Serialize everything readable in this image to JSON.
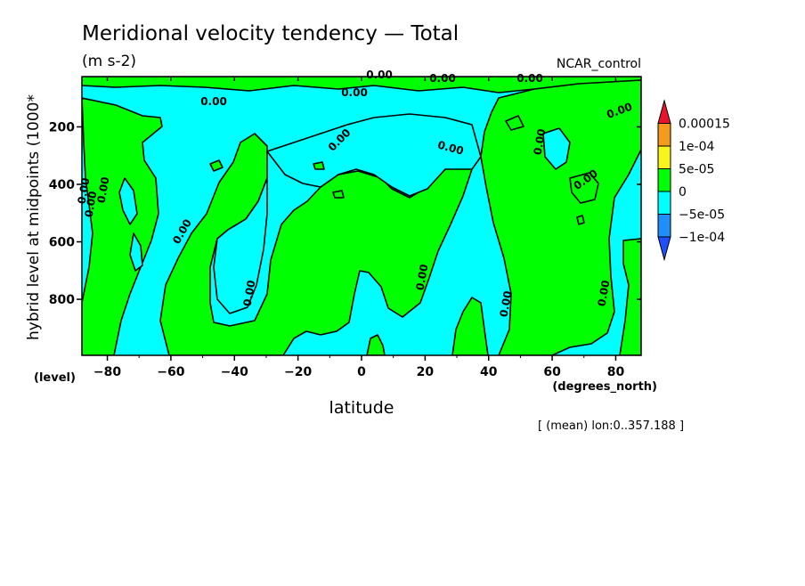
{
  "chart_data": {
    "type": "heatmap",
    "title": "Meridional velocity tendency — Total",
    "subtitle": "(m s-2)",
    "run_label": "NCAR_control",
    "xlabel": "latitude",
    "xunits": "(degrees_north)",
    "ylabel": "hybrid level at midpoints (1000*",
    "yunits": "(level)",
    "averaging_note": "[ (mean) lon:0..357.188 ]",
    "x_ticks": [
      "−80",
      "−60",
      "−40",
      "−20",
      "0",
      "20",
      "40",
      "60",
      "80"
    ],
    "x_tick_values": [
      -80,
      -60,
      -40,
      -20,
      0,
      20,
      40,
      60,
      80
    ],
    "y_ticks": [
      "200",
      "400",
      "600",
      "800"
    ],
    "y_tick_values": [
      200,
      400,
      600,
      800
    ],
    "xlim": [
      -88,
      88
    ],
    "ylim": [
      995,
      25
    ],
    "contour_label": "0.00",
    "colorbar": {
      "labels": [
        "0.00015",
        "1e-04",
        "5e-05",
        "0",
        "−5e-05",
        "−1e-04"
      ],
      "colors": [
        "#e8142b",
        "#f59a1b",
        "#f7f41e",
        "#00ff00",
        "#00ffff",
        "#1e8fff",
        "#1e50ff"
      ]
    },
    "field_colors": {
      "positive": "#00ff00",
      "negative": "#00ffff"
    }
  }
}
